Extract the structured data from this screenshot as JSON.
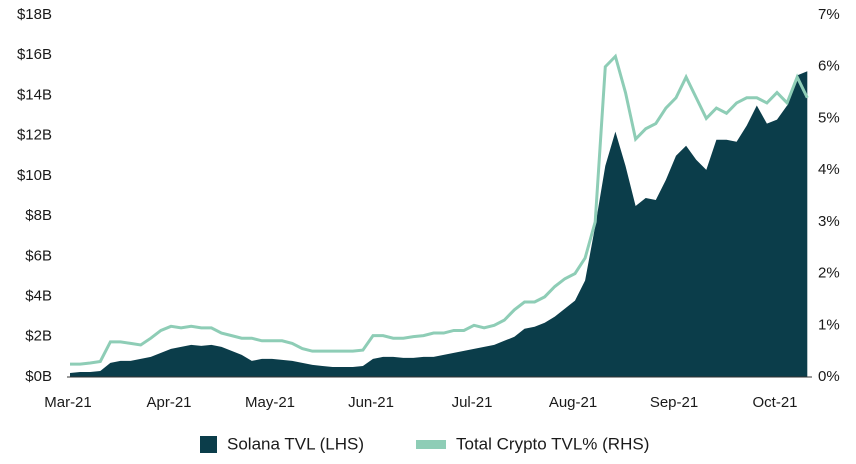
{
  "chart_data": {
    "type": "area_line",
    "categories": [
      "Mar-21",
      null,
      null,
      null,
      null,
      null,
      null,
      null,
      null,
      null,
      "Apr-21",
      null,
      null,
      null,
      null,
      null,
      null,
      null,
      null,
      null,
      "May-21",
      null,
      null,
      null,
      null,
      null,
      null,
      null,
      null,
      null,
      "Jun-21",
      null,
      null,
      null,
      null,
      null,
      null,
      null,
      null,
      null,
      "Jul-21",
      null,
      null,
      null,
      null,
      null,
      null,
      null,
      null,
      null,
      "Aug-21",
      null,
      null,
      null,
      null,
      null,
      null,
      null,
      null,
      null,
      "Sep-21",
      null,
      null,
      null,
      null,
      null,
      null,
      null,
      null,
      null,
      "Oct-21",
      null,
      null,
      null
    ],
    "series": [
      {
        "name": "Solana TVL (LHS)",
        "color": "#0b3d4a",
        "kind": "area",
        "values": [
          0.2,
          0.25,
          0.25,
          0.3,
          0.7,
          0.8,
          0.8,
          0.9,
          1.0,
          1.2,
          1.4,
          1.5,
          1.6,
          1.55,
          1.6,
          1.5,
          1.3,
          1.1,
          0.8,
          0.9,
          0.9,
          0.85,
          0.8,
          0.7,
          0.6,
          0.55,
          0.5,
          0.5,
          0.5,
          0.55,
          0.9,
          1.0,
          1.0,
          0.95,
          0.95,
          1.0,
          1.0,
          1.1,
          1.2,
          1.3,
          1.4,
          1.5,
          1.6,
          1.8,
          2.0,
          2.4,
          2.5,
          2.7,
          3.0,
          3.4,
          3.8,
          4.8,
          7.5,
          10.5,
          12.2,
          10.5,
          8.5,
          8.9,
          8.8,
          9.8,
          11,
          11.5,
          10.8,
          10.3,
          11.8,
          11.8,
          11.7,
          12.5,
          13.5,
          12.6,
          12.8,
          13.5,
          15.0,
          15.2
        ]
      },
      {
        "name": "Total Crypto TVL% (RHS)",
        "color": "#8ecdb6",
        "kind": "line",
        "axis": "y2",
        "values": [
          0.25,
          0.25,
          0.27,
          0.3,
          0.68,
          0.68,
          0.65,
          0.62,
          0.75,
          0.9,
          0.98,
          0.95,
          0.98,
          0.95,
          0.95,
          0.85,
          0.8,
          0.75,
          0.75,
          0.7,
          0.7,
          0.7,
          0.65,
          0.55,
          0.5,
          0.5,
          0.5,
          0.5,
          0.5,
          0.52,
          0.8,
          0.8,
          0.75,
          0.75,
          0.78,
          0.8,
          0.85,
          0.85,
          0.9,
          0.9,
          1.0,
          0.95,
          1.0,
          1.1,
          1.3,
          1.45,
          1.45,
          1.55,
          1.75,
          1.9,
          2.0,
          2.3,
          3.0,
          6.0,
          6.2,
          5.5,
          4.6,
          4.8,
          4.9,
          5.2,
          5.4,
          5.8,
          5.4,
          5.0,
          5.2,
          5.1,
          5.3,
          5.4,
          5.4,
          5.3,
          5.5,
          5.3,
          5.8,
          5.4
        ]
      }
    ],
    "ylim": [
      0,
      18
    ],
    "yticks": [
      {
        "value": 0,
        "label": "$0B"
      },
      {
        "value": 2,
        "label": "$2B"
      },
      {
        "value": 4,
        "label": "$4B"
      },
      {
        "value": 6,
        "label": "$6B"
      },
      {
        "value": 8,
        "label": "$8B"
      },
      {
        "value": 10,
        "label": "$10B"
      },
      {
        "value": 12,
        "label": "$12B"
      },
      {
        "value": 14,
        "label": "$14B"
      },
      {
        "value": 16,
        "label": "$16B"
      },
      {
        "value": 18,
        "label": "$18B"
      }
    ],
    "y2lim": [
      0,
      7
    ],
    "y2ticks": [
      {
        "value": 0,
        "label": "0%"
      },
      {
        "value": 1,
        "label": "1%"
      },
      {
        "value": 2,
        "label": "2%"
      },
      {
        "value": 3,
        "label": "3%"
      },
      {
        "value": 4,
        "label": "4%"
      },
      {
        "value": 5,
        "label": "5%"
      },
      {
        "value": 6,
        "label": "6%"
      },
      {
        "value": 7,
        "label": "7%"
      }
    ]
  }
}
